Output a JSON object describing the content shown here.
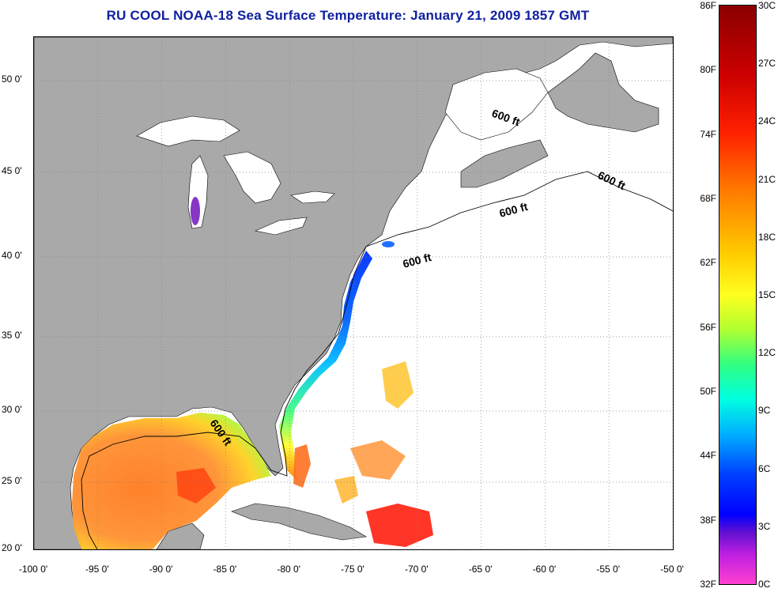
{
  "title": "RU COOL  NOAA-18  Sea Surface Temperature:  January 21, 2009 1857 GMT",
  "map": {
    "lat_labels": [
      {
        "text": "50 0'",
        "lat": 50
      },
      {
        "text": "45 0'",
        "lat": 45
      },
      {
        "text": "40 0'",
        "lat": 40
      },
      {
        "text": "35 0'",
        "lat": 35
      },
      {
        "text": "30 0'",
        "lat": 30
      },
      {
        "text": "25 0'",
        "lat": 25
      },
      {
        "text": "20 0'",
        "lat": 20
      }
    ],
    "lon_labels": [
      {
        "text": "-100 0'",
        "lon": -100
      },
      {
        "text": "-95 0'",
        "lon": -95
      },
      {
        "text": "-90 0'",
        "lon": -90
      },
      {
        "text": "-85 0'",
        "lon": -85
      },
      {
        "text": "-80 0'",
        "lon": -80
      },
      {
        "text": "-75 0'",
        "lon": -75
      },
      {
        "text": "-70 0'",
        "lon": -70
      },
      {
        "text": "-65 0'",
        "lon": -65
      },
      {
        "text": "-60 0'",
        "lon": -60
      },
      {
        "text": "-55 0'",
        "lon": -55
      },
      {
        "text": "-50 0'",
        "lon": -50
      }
    ],
    "depth_labels": [
      "600 ft",
      "600 ft",
      "600 ft",
      "600 ft",
      "600 ft"
    ],
    "colors": {
      "land": "#a9a9a9",
      "water": "#ffffff",
      "grid": "#808080",
      "outline": "#000000"
    }
  },
  "colorbar": {
    "fahrenheit": [
      "86F",
      "80F",
      "74F",
      "68F",
      "62F",
      "56F",
      "50F",
      "44F",
      "38F",
      "32F"
    ],
    "celsius": [
      "30C",
      "27C",
      "24C",
      "21C",
      "18C",
      "15C",
      "12C",
      "9C",
      "6C",
      "3C",
      "0C"
    ]
  }
}
